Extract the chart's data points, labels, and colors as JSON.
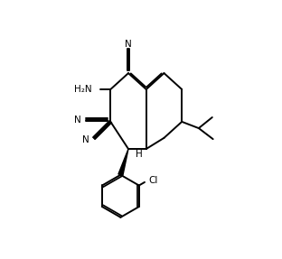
{
  "bg_color": "#ffffff",
  "line_color": "#000000",
  "line_width": 1.4,
  "figsize": [
    3.12,
    2.87
  ],
  "dpi": 100,
  "xlim": [
    0,
    10
  ],
  "ylim": [
    0,
    10
  ]
}
